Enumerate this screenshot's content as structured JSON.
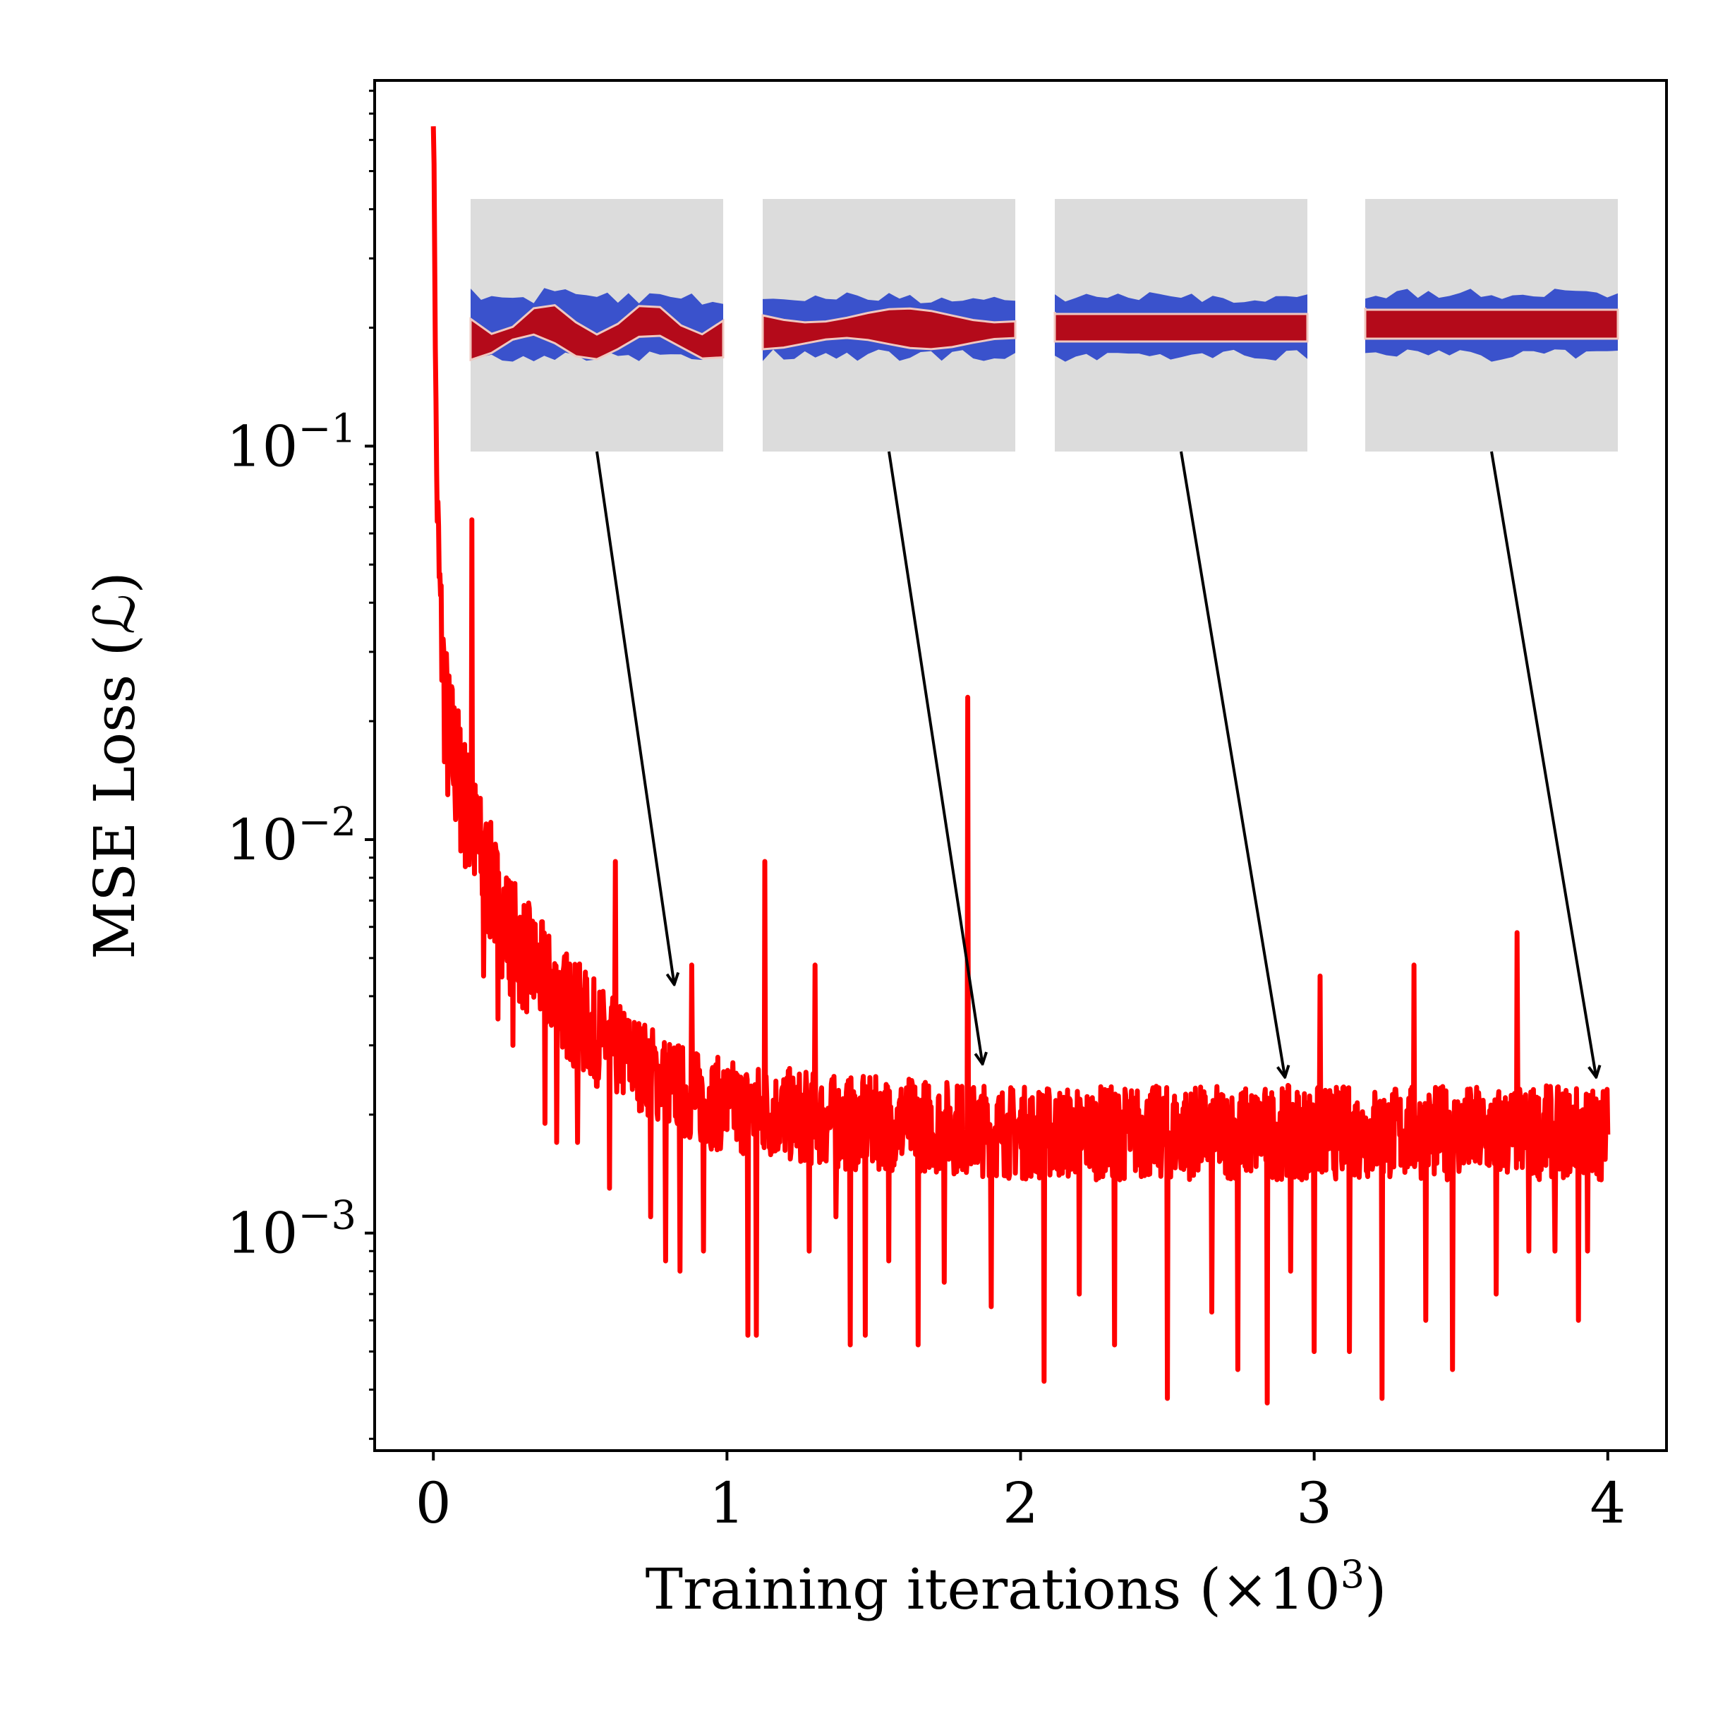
{
  "chart_data": {
    "type": "line",
    "xlabel": "Training iterations (×10",
    "xlabel_exponent": "3",
    "xlabel_close": ")",
    "ylabel": "MSE Loss (ℒ)",
    "yscale": "log",
    "xlim": [
      -0.2,
      4.2
    ],
    "ylim": [
      0.00028,
      0.85
    ],
    "grid": false,
    "legend": "none",
    "x_ticks": [
      {
        "value": 0,
        "label": "0"
      },
      {
        "value": 1,
        "label": "1"
      },
      {
        "value": 2,
        "label": "2"
      },
      {
        "value": 3,
        "label": "3"
      },
      {
        "value": 4,
        "label": "4"
      }
    ],
    "y_ticks": [
      {
        "value": 0.1,
        "base": "10",
        "exp": "−1"
      },
      {
        "value": 0.01,
        "base": "10",
        "exp": "−2"
      },
      {
        "value": 0.001,
        "base": "10",
        "exp": "−3"
      }
    ],
    "series": [
      {
        "color": "#ff0000",
        "x": [
          0.0,
          0.005,
          0.01,
          0.02,
          0.03,
          0.04,
          0.05,
          0.07,
          0.1,
          0.15,
          0.2,
          0.25,
          0.3,
          0.4,
          0.5,
          0.6,
          0.7,
          0.8,
          0.9,
          1.0,
          1.2,
          1.4,
          1.6,
          1.8,
          2.0,
          2.2,
          2.4,
          2.6,
          2.8,
          3.0,
          3.2,
          3.4,
          3.6,
          3.8,
          4.0
        ],
        "y_center": [
          0.65,
          0.3,
          0.09,
          0.045,
          0.03,
          0.022,
          0.018,
          0.016,
          0.013,
          0.0095,
          0.0075,
          0.006,
          0.0052,
          0.0042,
          0.0035,
          0.003,
          0.0027,
          0.0024,
          0.0022,
          0.0021,
          0.002,
          0.0019,
          0.0019,
          0.00185,
          0.0018,
          0.0018,
          0.0018,
          0.0018,
          0.0018,
          0.0018,
          0.0018,
          0.0018,
          0.0018,
          0.0018,
          0.0018
        ],
        "y_spread": [
          0.05,
          0.08,
          0.12,
          0.16,
          0.18,
          0.2,
          0.2,
          0.2,
          0.18,
          0.17,
          0.16,
          0.16,
          0.15,
          0.14,
          0.14,
          0.13,
          0.12,
          0.12,
          0.12,
          0.12,
          0.12,
          0.12,
          0.12,
          0.12,
          0.12,
          0.12,
          0.12,
          0.12,
          0.12,
          0.12,
          0.12,
          0.12,
          0.12,
          0.12,
          0.12
        ],
        "spikes_up": [
          {
            "x": 0.13,
            "y": 0.065
          },
          {
            "x": 0.62,
            "y": 0.0088
          },
          {
            "x": 1.13,
            "y": 0.0088
          },
          {
            "x": 1.82,
            "y": 0.023
          },
          {
            "x": 3.02,
            "y": 0.0045
          },
          {
            "x": 3.34,
            "y": 0.0048
          },
          {
            "x": 3.69,
            "y": 0.0058
          },
          {
            "x": 0.88,
            "y": 0.0048
          },
          {
            "x": 1.3,
            "y": 0.0048
          }
        ],
        "spikes_down": [
          {
            "x": 0.17,
            "y": 0.0045
          },
          {
            "x": 0.22,
            "y": 0.0035
          },
          {
            "x": 0.27,
            "y": 0.003
          },
          {
            "x": 0.38,
            "y": 0.0019
          },
          {
            "x": 0.42,
            "y": 0.0017
          },
          {
            "x": 0.49,
            "y": 0.0017
          },
          {
            "x": 0.6,
            "y": 0.0013
          },
          {
            "x": 0.74,
            "y": 0.0011
          },
          {
            "x": 0.79,
            "y": 0.00085
          },
          {
            "x": 0.84,
            "y": 0.0008
          },
          {
            "x": 0.92,
            "y": 0.0009
          },
          {
            "x": 1.07,
            "y": 0.00055
          },
          {
            "x": 1.1,
            "y": 0.00055
          },
          {
            "x": 1.28,
            "y": 0.0009
          },
          {
            "x": 1.37,
            "y": 0.0011
          },
          {
            "x": 1.42,
            "y": 0.00052
          },
          {
            "x": 1.47,
            "y": 0.00055
          },
          {
            "x": 1.55,
            "y": 0.00085
          },
          {
            "x": 1.65,
            "y": 0.00052
          },
          {
            "x": 1.74,
            "y": 0.00075
          },
          {
            "x": 1.9,
            "y": 0.00065
          },
          {
            "x": 2.08,
            "y": 0.00042
          },
          {
            "x": 2.2,
            "y": 0.0007
          },
          {
            "x": 2.32,
            "y": 0.00052
          },
          {
            "x": 2.5,
            "y": 0.00038
          },
          {
            "x": 2.65,
            "y": 0.00063
          },
          {
            "x": 2.74,
            "y": 0.00045
          },
          {
            "x": 2.84,
            "y": 0.00037
          },
          {
            "x": 2.92,
            "y": 0.0008
          },
          {
            "x": 3.0,
            "y": 0.0005
          },
          {
            "x": 3.12,
            "y": 0.0005
          },
          {
            "x": 3.23,
            "y": 0.00038
          },
          {
            "x": 3.38,
            "y": 0.0006
          },
          {
            "x": 3.47,
            "y": 0.00045
          },
          {
            "x": 3.62,
            "y": 0.0007
          },
          {
            "x": 3.73,
            "y": 0.0009
          },
          {
            "x": 3.82,
            "y": 0.0009
          },
          {
            "x": 3.9,
            "y": 0.0006
          },
          {
            "x": 3.93,
            "y": 0.0009
          }
        ]
      }
    ],
    "insets": [
      {
        "iteration": 0.82,
        "loss": 0.0043
      },
      {
        "iteration": 1.87,
        "loss": 0.0027
      },
      {
        "iteration": 2.9,
        "loss": 0.0025
      },
      {
        "iteration": 3.96,
        "loss": 0.0025
      }
    ]
  }
}
